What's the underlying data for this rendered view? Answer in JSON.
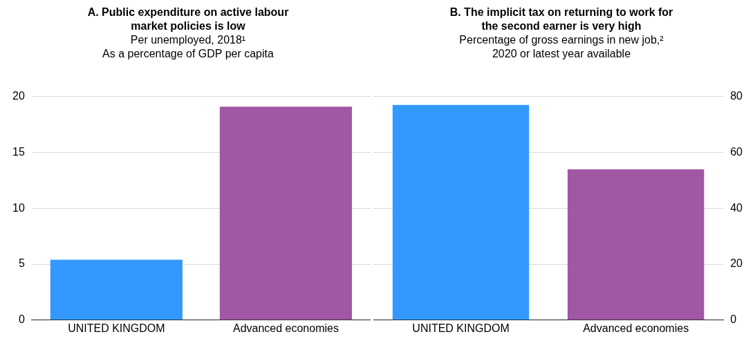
{
  "chart_data": [
    {
      "type": "bar",
      "title": "A. Public expenditure on active labour market policies is low",
      "subtitle": "Per unemployed, 2018¹\nAs a percentage of GDP per capita",
      "categories": [
        "UNITED KINGDOM",
        "Advanced economies"
      ],
      "series": [
        {
          "values": [
            5.4,
            19.1
          ],
          "colors": [
            "#3399ff",
            "#a057a4"
          ]
        }
      ],
      "ylim": [
        0,
        20
      ],
      "yticks": [
        0,
        5,
        10,
        15,
        20
      ],
      "grid": "y"
    },
    {
      "type": "bar",
      "title": "B. The implicit tax on returning to work for the second earner is very high",
      "subtitle": "Percentage of gross earnings in new job,²\n2020 or latest year available",
      "categories": [
        "UNITED KINGDOM",
        "Advanced economies"
      ],
      "series": [
        {
          "values": [
            77,
            54
          ],
          "colors": [
            "#3399ff",
            "#a057a4"
          ],
          "axis": "y2"
        }
      ],
      "y2lim": [
        0,
        80
      ],
      "y2ticks": [
        0,
        20,
        40,
        60,
        80
      ],
      "grid": "y"
    }
  ]
}
